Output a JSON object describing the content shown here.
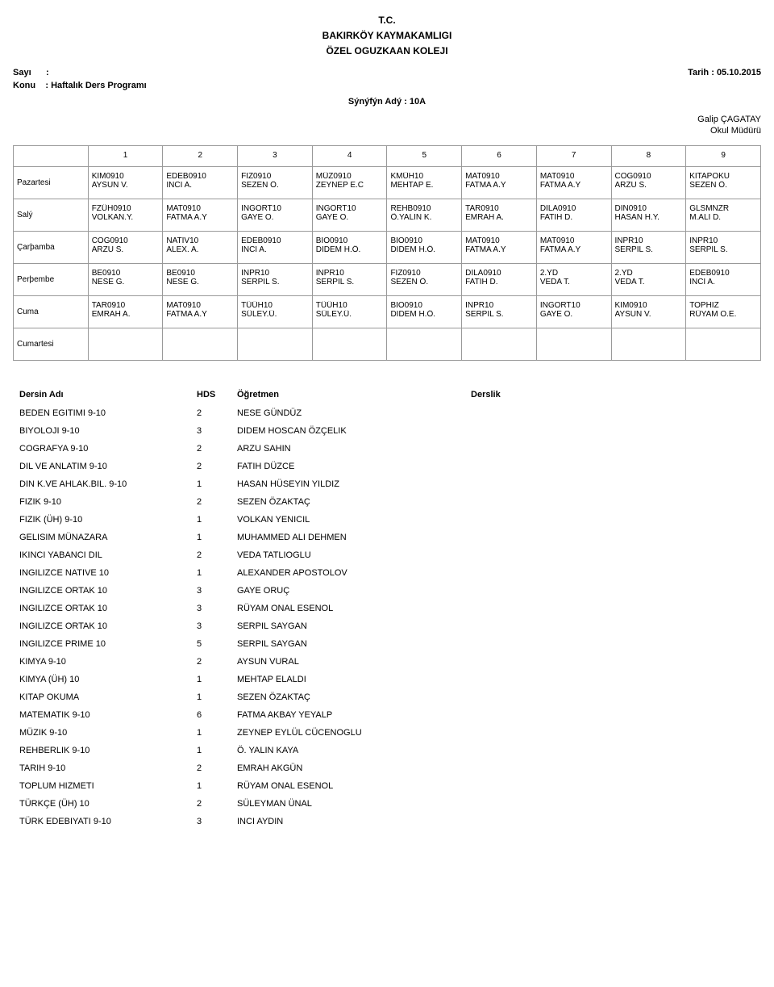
{
  "header": {
    "line1": "T.C.",
    "line2": "BAKIRKÖY KAYMAKAMLIGI",
    "line3": "ÖZEL OGUZKAAN KOLEJI"
  },
  "meta": {
    "sayi_label": "Sayı",
    "sayi_sep": ":",
    "konu_label": "Konu",
    "konu_sep": ": Haftalık Ders Programı",
    "tarih_label": "Tarih  :",
    "tarih_value": "05.10.2015"
  },
  "class_label": "Sýnýfýn Adý : 10A",
  "sign": {
    "name": "Galip ÇAGATAY",
    "title": "Okul Müdürü"
  },
  "schedule": {
    "periods": [
      "1",
      "2",
      "3",
      "4",
      "5",
      "6",
      "7",
      "8",
      "9"
    ],
    "days": [
      {
        "name": "Pazartesi",
        "cells": [
          {
            "c": "KIM0910",
            "t": "AYSUN V."
          },
          {
            "c": "EDEB0910",
            "t": "INCI A."
          },
          {
            "c": "FIZ0910",
            "t": "SEZEN Ö."
          },
          {
            "c": "MÜZ0910",
            "t": "ZEYNEP E.C"
          },
          {
            "c": "KMÜH10",
            "t": "MEHTAP E."
          },
          {
            "c": "MAT0910",
            "t": "FATMA A.Y"
          },
          {
            "c": "MAT0910",
            "t": "FATMA A.Y"
          },
          {
            "c": "COG0910",
            "t": "ARZU S."
          },
          {
            "c": "KITAPOKU",
            "t": "SEZEN Ö."
          }
        ]
      },
      {
        "name": "Salý",
        "cells": [
          {
            "c": "FZÜH0910",
            "t": "VOLKAN.Y."
          },
          {
            "c": "MAT0910",
            "t": "FATMA A.Y"
          },
          {
            "c": "INGORT10",
            "t": "GAYE O."
          },
          {
            "c": "INGORT10",
            "t": "GAYE O."
          },
          {
            "c": "REHB0910",
            "t": "Ö.YALIN K."
          },
          {
            "c": "TAR0910",
            "t": "EMRAH A."
          },
          {
            "c": "DILA0910",
            "t": "FATIH D."
          },
          {
            "c": "DIN0910",
            "t": "HASAN H.Y."
          },
          {
            "c": "GLSMNZR",
            "t": "M.ALI D."
          }
        ]
      },
      {
        "name": "Çarþamba",
        "cells": [
          {
            "c": "COG0910",
            "t": "ARZU S."
          },
          {
            "c": "NATIV10",
            "t": "ALEX. A."
          },
          {
            "c": "EDEB0910",
            "t": "INCI A."
          },
          {
            "c": "BIO0910",
            "t": "DIDEM H.Ö."
          },
          {
            "c": "BIO0910",
            "t": "DIDEM H.Ö."
          },
          {
            "c": "MAT0910",
            "t": "FATMA A.Y"
          },
          {
            "c": "MAT0910",
            "t": "FATMA A.Y"
          },
          {
            "c": "INPR10",
            "t": "SERPIL S."
          },
          {
            "c": "INPR10",
            "t": "SERPIL S."
          }
        ]
      },
      {
        "name": "Perþembe",
        "cells": [
          {
            "c": "BE0910",
            "t": "NESE G."
          },
          {
            "c": "BE0910",
            "t": "NESE G."
          },
          {
            "c": "INPR10",
            "t": "SERPIL S."
          },
          {
            "c": "INPR10",
            "t": "SERPIL S."
          },
          {
            "c": "FIZ0910",
            "t": "SEZEN Ö."
          },
          {
            "c": "DILA0910",
            "t": "FATIH D."
          },
          {
            "c": "2.YD",
            "t": "VEDA T."
          },
          {
            "c": "2.YD",
            "t": "VEDA T."
          },
          {
            "c": "EDEB0910",
            "t": "INCI A."
          }
        ]
      },
      {
        "name": "Cuma",
        "cells": [
          {
            "c": "TAR0910",
            "t": "EMRAH A."
          },
          {
            "c": "MAT0910",
            "t": "FATMA A.Y"
          },
          {
            "c": "TÜÜH10",
            "t": "SÜLEY.Ü."
          },
          {
            "c": "TÜÜH10",
            "t": "SÜLEY.Ü."
          },
          {
            "c": "BIO0910",
            "t": "DIDEM H.Ö."
          },
          {
            "c": "INPR10",
            "t": "SERPIL S."
          },
          {
            "c": "INGORT10",
            "t": "GAYE O."
          },
          {
            "c": "KIM0910",
            "t": "AYSUN V."
          },
          {
            "c": "TOPHIZ",
            "t": "RÜYAM O.E."
          }
        ]
      },
      {
        "name": "Cumartesi",
        "cells": [
          {
            "c": "",
            "t": ""
          },
          {
            "c": "",
            "t": ""
          },
          {
            "c": "",
            "t": ""
          },
          {
            "c": "",
            "t": ""
          },
          {
            "c": "",
            "t": ""
          },
          {
            "c": "",
            "t": ""
          },
          {
            "c": "",
            "t": ""
          },
          {
            "c": "",
            "t": ""
          },
          {
            "c": "",
            "t": ""
          }
        ]
      }
    ]
  },
  "courses": {
    "headers": {
      "name": "Dersin Adı",
      "hds": "HDS",
      "teacher": "Öğretmen",
      "room": "Derslik"
    },
    "rows": [
      {
        "name": "BEDEN EGITIMI 9-10",
        "hds": "2",
        "teacher": "NESE GÜNDÜZ",
        "room": ""
      },
      {
        "name": "BIYOLOJI 9-10",
        "hds": "3",
        "teacher": "DIDEM HOSCAN ÖZÇELIK",
        "room": ""
      },
      {
        "name": "COGRAFYA 9-10",
        "hds": "2",
        "teacher": "ARZU SAHIN",
        "room": ""
      },
      {
        "name": "DIL VE ANLATIM 9-10",
        "hds": "2",
        "teacher": "FATIH DÜZCE",
        "room": ""
      },
      {
        "name": "DIN K.VE AHLAK.BIL. 9-10",
        "hds": "1",
        "teacher": "HASAN HÜSEYIN YILDIZ",
        "room": ""
      },
      {
        "name": "FIZIK 9-10",
        "hds": "2",
        "teacher": "SEZEN ÖZAKTAÇ",
        "room": ""
      },
      {
        "name": "FIZIK (ÜH) 9-10",
        "hds": "1",
        "teacher": "VOLKAN YENICIL",
        "room": ""
      },
      {
        "name": "GELISIM MÜNAZARA",
        "hds": "1",
        "teacher": "MUHAMMED ALI DEHMEN",
        "room": ""
      },
      {
        "name": "IKINCI YABANCI DIL",
        "hds": "2",
        "teacher": "VEDA TATLIOGLU",
        "room": ""
      },
      {
        "name": "INGILIZCE NATIVE 10",
        "hds": "1",
        "teacher": "ALEXANDER APOSTOLOV",
        "room": ""
      },
      {
        "name": "INGILIZCE ORTAK 10",
        "hds": "3",
        "teacher": "GAYE ORUÇ",
        "room": ""
      },
      {
        "name": "INGILIZCE ORTAK 10",
        "hds": "3",
        "teacher": "RÜYAM ONAL ESENOL",
        "room": ""
      },
      {
        "name": "INGILIZCE ORTAK 10",
        "hds": "3",
        "teacher": "SERPIL SAYGAN",
        "room": ""
      },
      {
        "name": "INGILIZCE PRIME 10",
        "hds": "5",
        "teacher": "SERPIL SAYGAN",
        "room": ""
      },
      {
        "name": "KIMYA 9-10",
        "hds": "2",
        "teacher": "AYSUN VURAL",
        "room": ""
      },
      {
        "name": "KIMYA (ÜH) 10",
        "hds": "1",
        "teacher": "MEHTAP ELALDI",
        "room": ""
      },
      {
        "name": "KITAP OKUMA",
        "hds": "1",
        "teacher": "SEZEN ÖZAKTAÇ",
        "room": ""
      },
      {
        "name": "MATEMATIK 9-10",
        "hds": "6",
        "teacher": "FATMA AKBAY YEYALP",
        "room": ""
      },
      {
        "name": "MÜZIK 9-10",
        "hds": "1",
        "teacher": "ZEYNEP EYLÜL CÜCENOGLU",
        "room": ""
      },
      {
        "name": "REHBERLIK 9-10",
        "hds": "1",
        "teacher": "Ö. YALIN KAYA",
        "room": ""
      },
      {
        "name": "TARIH 9-10",
        "hds": "2",
        "teacher": "EMRAH AKGÜN",
        "room": ""
      },
      {
        "name": "TOPLUM HIZMETI",
        "hds": "1",
        "teacher": "RÜYAM ONAL ESENOL",
        "room": ""
      },
      {
        "name": "TÜRKÇE (ÜH) 10",
        "hds": "2",
        "teacher": "SÜLEYMAN ÜNAL",
        "room": ""
      },
      {
        "name": "TÜRK EDEBIYATI 9-10",
        "hds": "3",
        "teacher": "INCI AYDIN",
        "room": ""
      }
    ]
  }
}
